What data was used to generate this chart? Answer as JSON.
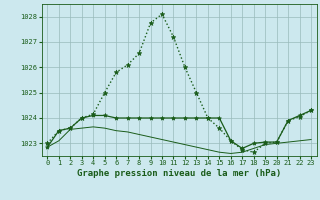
{
  "bg_color": "#cce8ee",
  "grid_color": "#99bbbb",
  "line_color": "#1a5c1a",
  "title": "Graphe pression niveau de la mer (hPa)",
  "title_fontsize": 6.5,
  "ylim": [
    1022.5,
    1028.5
  ],
  "xlim": [
    -0.5,
    23.5
  ],
  "yticks": [
    1023,
    1024,
    1025,
    1026,
    1027,
    1028
  ],
  "xticks": [
    0,
    1,
    2,
    3,
    4,
    5,
    6,
    7,
    8,
    9,
    10,
    11,
    12,
    13,
    14,
    15,
    16,
    17,
    18,
    19,
    20,
    21,
    22,
    23
  ],
  "series": [
    {
      "x": [
        0,
        1,
        2,
        3,
        4,
        5,
        6,
        7,
        8,
        9,
        10,
        11,
        12,
        13,
        14,
        15,
        16,
        17,
        18,
        19,
        20,
        21,
        22,
        23
      ],
      "y": [
        1023.0,
        1023.5,
        1023.6,
        1024.0,
        1024.15,
        1025.0,
        1025.8,
        1026.1,
        1026.55,
        1027.75,
        1028.1,
        1027.2,
        1026.0,
        1025.0,
        1024.0,
        1023.6,
        1023.1,
        1022.75,
        1022.65,
        1023.0,
        1023.05,
        1023.9,
        1024.05,
        1024.3
      ],
      "linestyle": "dotted",
      "marker": "*",
      "linewidth": 1.0,
      "markersize": 3.5
    },
    {
      "x": [
        0,
        1,
        2,
        3,
        4,
        5,
        6,
        7,
        8,
        9,
        10,
        11,
        12,
        13,
        14,
        15,
        16,
        17,
        18,
        19,
        20,
        21,
        22,
        23
      ],
      "y": [
        1022.85,
        1023.5,
        1023.6,
        1024.0,
        1024.1,
        1024.1,
        1024.0,
        1024.0,
        1024.0,
        1024.0,
        1024.0,
        1024.0,
        1024.0,
        1024.0,
        1024.0,
        1024.0,
        1023.1,
        1022.8,
        1023.0,
        1023.05,
        1023.05,
        1023.9,
        1024.1,
        1024.3
      ],
      "linestyle": "solid",
      "marker": "*",
      "linewidth": 0.9,
      "markersize": 3.0
    },
    {
      "x": [
        0,
        1,
        2,
        3,
        4,
        5,
        6,
        7,
        8,
        9,
        10,
        11,
        12,
        13,
        14,
        15,
        16,
        17,
        18,
        19,
        20,
        21,
        22,
        23
      ],
      "y": [
        1022.85,
        1023.1,
        1023.55,
        1023.6,
        1023.65,
        1023.6,
        1023.5,
        1023.45,
        1023.35,
        1023.25,
        1023.15,
        1023.05,
        1022.95,
        1022.85,
        1022.75,
        1022.65,
        1022.6,
        1022.65,
        1022.8,
        1022.95,
        1023.0,
        1023.05,
        1023.1,
        1023.15
      ],
      "linestyle": "solid",
      "marker": null,
      "linewidth": 0.7,
      "markersize": 0
    }
  ]
}
